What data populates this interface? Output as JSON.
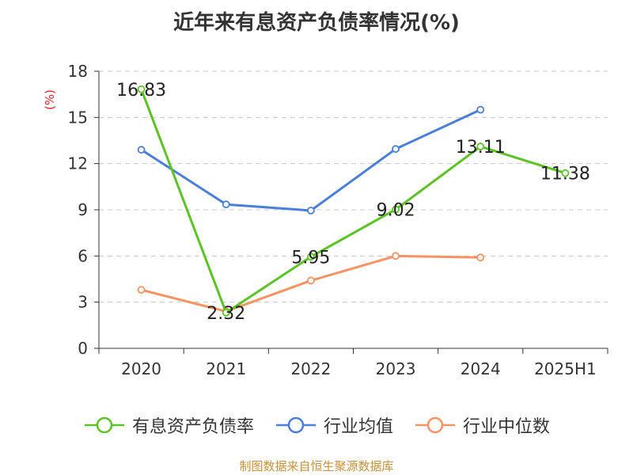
{
  "chart_data": {
    "type": "line",
    "title": "近年来有息资产负债率情况(%)",
    "ylabel": "(%)",
    "categories": [
      "2020",
      "2021",
      "2022",
      "2023",
      "2024",
      "2025H1"
    ],
    "ylim": [
      0,
      18
    ],
    "yticks": [
      0,
      3,
      6,
      9,
      12,
      15,
      18
    ],
    "grid": true,
    "legend_position": "bottom",
    "series": [
      {
        "name": "有息资产负债率",
        "color": "#5bc424",
        "values": [
          16.83,
          2.32,
          5.95,
          9.02,
          13.11,
          11.38
        ],
        "labels": [
          "16.83",
          "2.32",
          "5.95",
          "9.02",
          "13.11",
          "11.38"
        ]
      },
      {
        "name": "行业均值",
        "color": "#4a7fd9",
        "values": [
          12.9,
          9.35,
          8.95,
          12.95,
          15.5,
          null
        ]
      },
      {
        "name": "行业中位数",
        "color": "#f59462",
        "values": [
          3.8,
          2.4,
          4.4,
          6.0,
          5.9,
          null
        ]
      }
    ]
  },
  "source": "制图数据来自恒生聚源数据库"
}
